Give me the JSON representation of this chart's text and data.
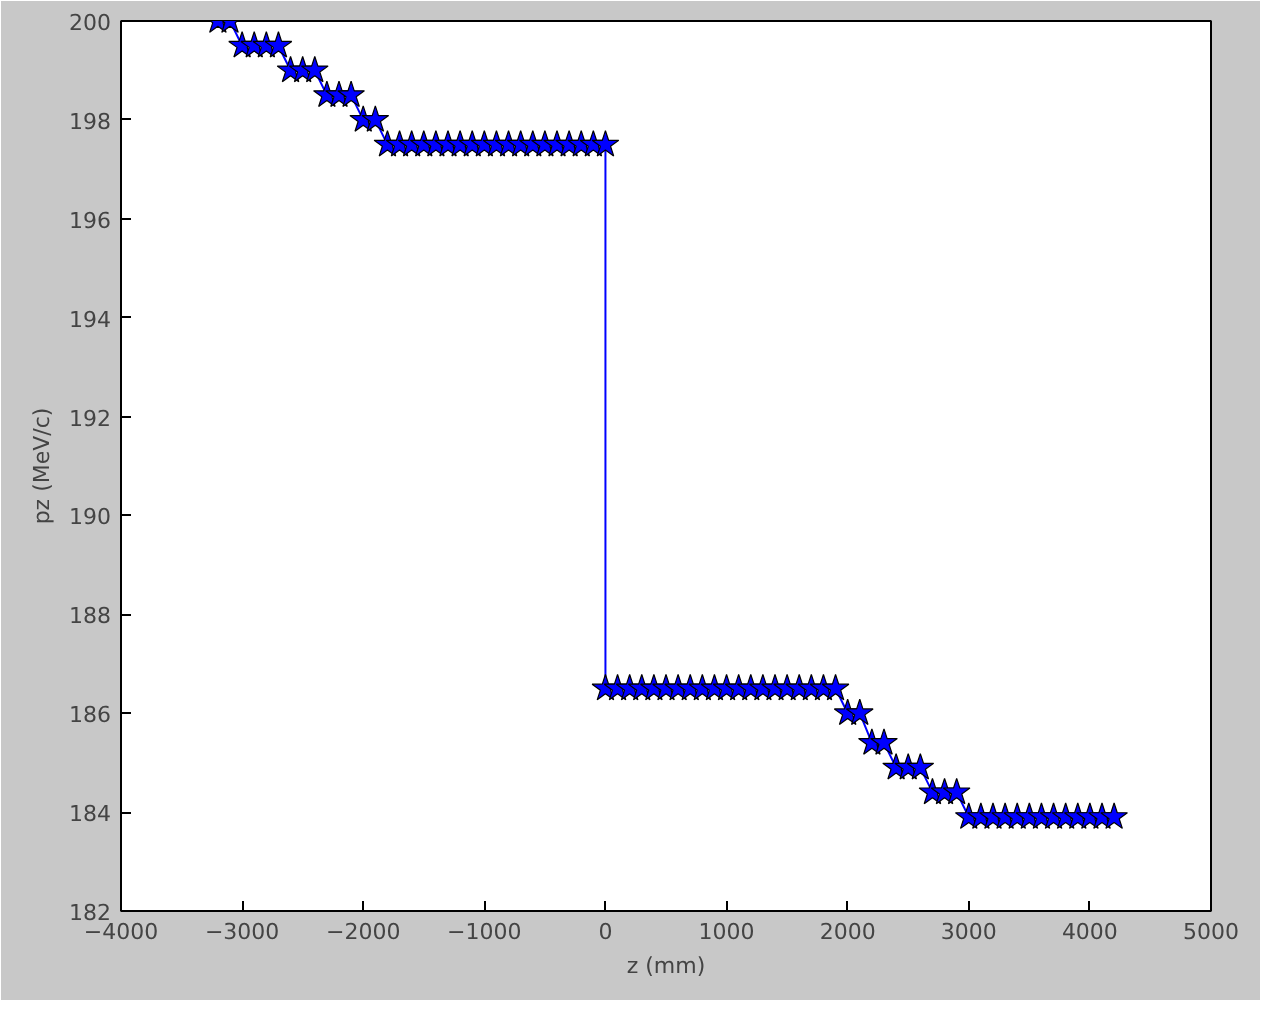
{
  "chart_data": {
    "type": "line",
    "xlabel": "z (mm)",
    "ylabel": "pz (MeV/c)",
    "x": [
      -3200,
      -3100,
      -3000,
      -2900,
      -2800,
      -2700,
      -2600,
      -2500,
      -2400,
      -2300,
      -2200,
      -2100,
      -2000,
      -1900,
      -1800,
      -1700,
      -1600,
      -1500,
      -1400,
      -1300,
      -1200,
      -1100,
      -1000,
      -900,
      -800,
      -700,
      -600,
      -500,
      -400,
      -300,
      -200,
      -100,
      0,
      0,
      100,
      200,
      300,
      400,
      500,
      600,
      700,
      800,
      900,
      1000,
      1100,
      1200,
      1300,
      1400,
      1500,
      1600,
      1700,
      1800,
      1900,
      2000,
      2100,
      2200,
      2300,
      2400,
      2500,
      2600,
      2700,
      2800,
      2900,
      3000,
      3100,
      3200,
      3300,
      3400,
      3500,
      3600,
      3700,
      3800,
      3900,
      4000,
      4100,
      4200
    ],
    "series": [
      {
        "color": "#0000ff",
        "values": [
          200,
          200,
          199.5,
          199.5,
          199.5,
          199.5,
          199,
          199,
          199,
          198.5,
          198.5,
          198.5,
          198,
          198,
          197.5,
          197.5,
          197.5,
          197.5,
          197.5,
          197.5,
          197.5,
          197.5,
          197.5,
          197.5,
          197.5,
          197.5,
          197.5,
          197.5,
          197.5,
          197.5,
          197.5,
          197.5,
          197.5,
          186.5,
          186.5,
          186.5,
          186.5,
          186.5,
          186.5,
          186.5,
          186.5,
          186.5,
          186.5,
          186.5,
          186.5,
          186.5,
          186.5,
          186.5,
          186.5,
          186.5,
          186.5,
          186.5,
          186.5,
          186.0,
          186.0,
          185.4,
          185.4,
          184.9,
          184.9,
          184.9,
          184.4,
          184.4,
          184.4,
          183.9,
          183.9,
          183.9,
          183.9,
          183.9,
          183.9,
          183.9,
          183.9,
          183.9,
          183.9,
          183.9,
          183.9,
          183.9
        ]
      }
    ],
    "marker": "star",
    "line_style": "solid",
    "grid": false,
    "xlim": [
      -4000,
      5000
    ],
    "ylim": [
      182,
      200
    ],
    "xticks": [
      {
        "value": -4000,
        "label": "−4000"
      },
      {
        "value": -3000,
        "label": "−3000"
      },
      {
        "value": -2000,
        "label": "−2000"
      },
      {
        "value": -1000,
        "label": "−1000"
      },
      0,
      1000,
      2000,
      3000,
      4000,
      5000
    ],
    "yticks": [
      182,
      184,
      186,
      188,
      190,
      192,
      194,
      196,
      198,
      200
    ]
  }
}
